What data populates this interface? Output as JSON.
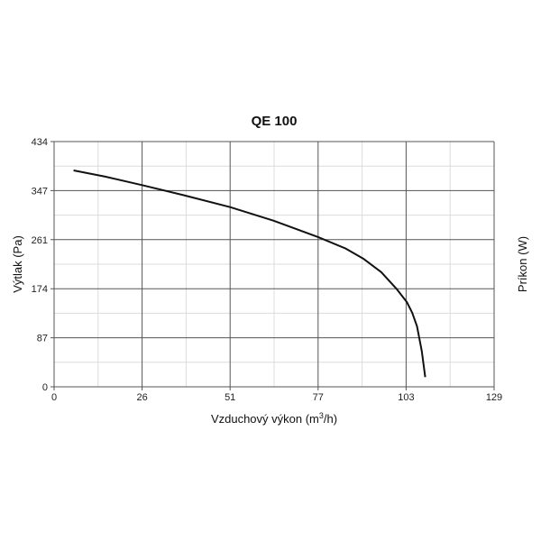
{
  "chart_data": {
    "type": "line",
    "title": "QE 100",
    "xlabel": "Vzduchový výkon (m",
    "xlabel_sup": "3",
    "xlabel_tail": "/h)",
    "ylabel": "Výtlak (Pa)",
    "y2label": "Príkon (W)",
    "xlim": [
      0,
      129
    ],
    "ylim": [
      0,
      434
    ],
    "xticks": [
      "0",
      "26",
      "51",
      "77",
      "103",
      "129"
    ],
    "yticks": [
      "0",
      "87",
      "174",
      "261",
      "347",
      "434"
    ],
    "grid": true,
    "series": [
      {
        "color": "#111111",
        "x": [
          5.7,
          15,
          25.8,
          38,
          51.6,
          64.3,
          77.4,
          85.4,
          90.6,
          95.9,
          100.3,
          103.4,
          105,
          106.4,
          107.8,
          108.8
        ],
        "y": [
          383,
          372,
          357,
          339,
          318,
          294,
          265,
          245,
          227,
          203,
          174,
          150,
          131,
          107,
          63,
          17
        ]
      }
    ]
  }
}
